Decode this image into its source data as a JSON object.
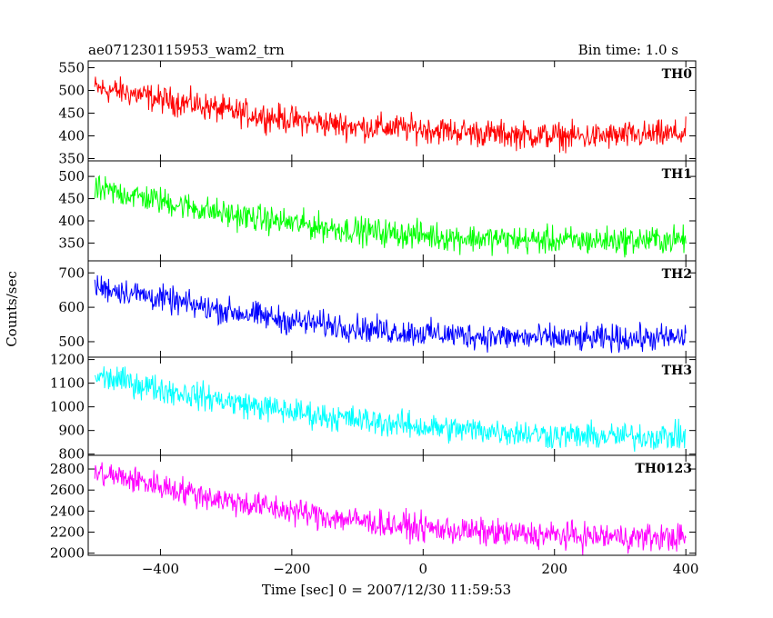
{
  "header": {
    "title": "ae071230115953_wam2_trn",
    "bin_time": "Bin time: 1.0 s"
  },
  "axes": {
    "ylabel": "Counts/sec",
    "xlabel": "Time [sec] 0 = 2007/12/30 11:59:53"
  },
  "chart_data": {
    "type": "line",
    "title": "ae071230115953_wam2_trn",
    "xlabel": "Time [sec] 0 = 2007/12/30 11:59:53",
    "ylabel": "Counts/sec",
    "xlim": [
      -510,
      415
    ],
    "x_ticks": [
      -400,
      -200,
      0,
      200,
      400
    ],
    "bin_time_s": 1.0,
    "grid": false,
    "panels": [
      {
        "name": "TH0",
        "color": "#ff0000",
        "ylim": [
          345,
          565
        ],
        "y_ticks": [
          350,
          400,
          450,
          500,
          550
        ],
        "x": [
          -500,
          -450,
          -400,
          -350,
          -300,
          -250,
          -200,
          -150,
          -100,
          -50,
          0,
          50,
          100,
          150,
          200,
          250,
          300,
          350,
          400
        ],
        "values": [
          505,
          495,
          480,
          470,
          455,
          445,
          435,
          428,
          420,
          418,
          415,
          410,
          405,
          402,
          400,
          398,
          400,
          402,
          405
        ]
      },
      {
        "name": "TH1",
        "color": "#00ff00",
        "ylim": [
          310,
          535
        ],
        "y_ticks": [
          350,
          400,
          450,
          500
        ],
        "x": [
          -500,
          -450,
          -400,
          -350,
          -300,
          -250,
          -200,
          -150,
          -100,
          -50,
          0,
          50,
          100,
          150,
          200,
          250,
          300,
          350,
          400
        ],
        "values": [
          470,
          460,
          445,
          430,
          415,
          405,
          395,
          385,
          378,
          372,
          368,
          362,
          360,
          357,
          356,
          355,
          356,
          357,
          358
        ]
      },
      {
        "name": "TH2",
        "color": "#0000ff",
        "ylim": [
          455,
          735
        ],
        "y_ticks": [
          500,
          600,
          700
        ],
        "x": [
          -500,
          -450,
          -400,
          -350,
          -300,
          -250,
          -200,
          -150,
          -100,
          -50,
          0,
          50,
          100,
          150,
          200,
          250,
          300,
          350,
          400
        ],
        "values": [
          660,
          645,
          625,
          605,
          590,
          575,
          560,
          550,
          540,
          530,
          525,
          520,
          515,
          512,
          510,
          508,
          510,
          510,
          512
        ]
      },
      {
        "name": "TH3",
        "color": "#00ffff",
        "ylim": [
          795,
          1210
        ],
        "y_ticks": [
          800,
          900,
          1000,
          1100,
          1200
        ],
        "x": [
          -500,
          -450,
          -400,
          -350,
          -300,
          -250,
          -200,
          -150,
          -100,
          -50,
          0,
          50,
          100,
          150,
          200,
          250,
          300,
          350,
          400
        ],
        "values": [
          1130,
          1105,
          1075,
          1050,
          1025,
          1000,
          980,
          960,
          945,
          930,
          915,
          905,
          900,
          890,
          880,
          875,
          875,
          875,
          875
        ]
      },
      {
        "name": "TH0123",
        "color": "#ff00ff",
        "ylim": [
          1980,
          2930
        ],
        "y_ticks": [
          2000,
          2200,
          2400,
          2600,
          2800
        ],
        "x": [
          -500,
          -450,
          -400,
          -350,
          -300,
          -250,
          -200,
          -150,
          -100,
          -50,
          0,
          50,
          100,
          150,
          200,
          250,
          300,
          350,
          400
        ],
        "values": [
          2760,
          2710,
          2640,
          2570,
          2500,
          2450,
          2400,
          2350,
          2310,
          2270,
          2240,
          2215,
          2195,
          2180,
          2170,
          2160,
          2155,
          2150,
          2150
        ]
      }
    ]
  }
}
